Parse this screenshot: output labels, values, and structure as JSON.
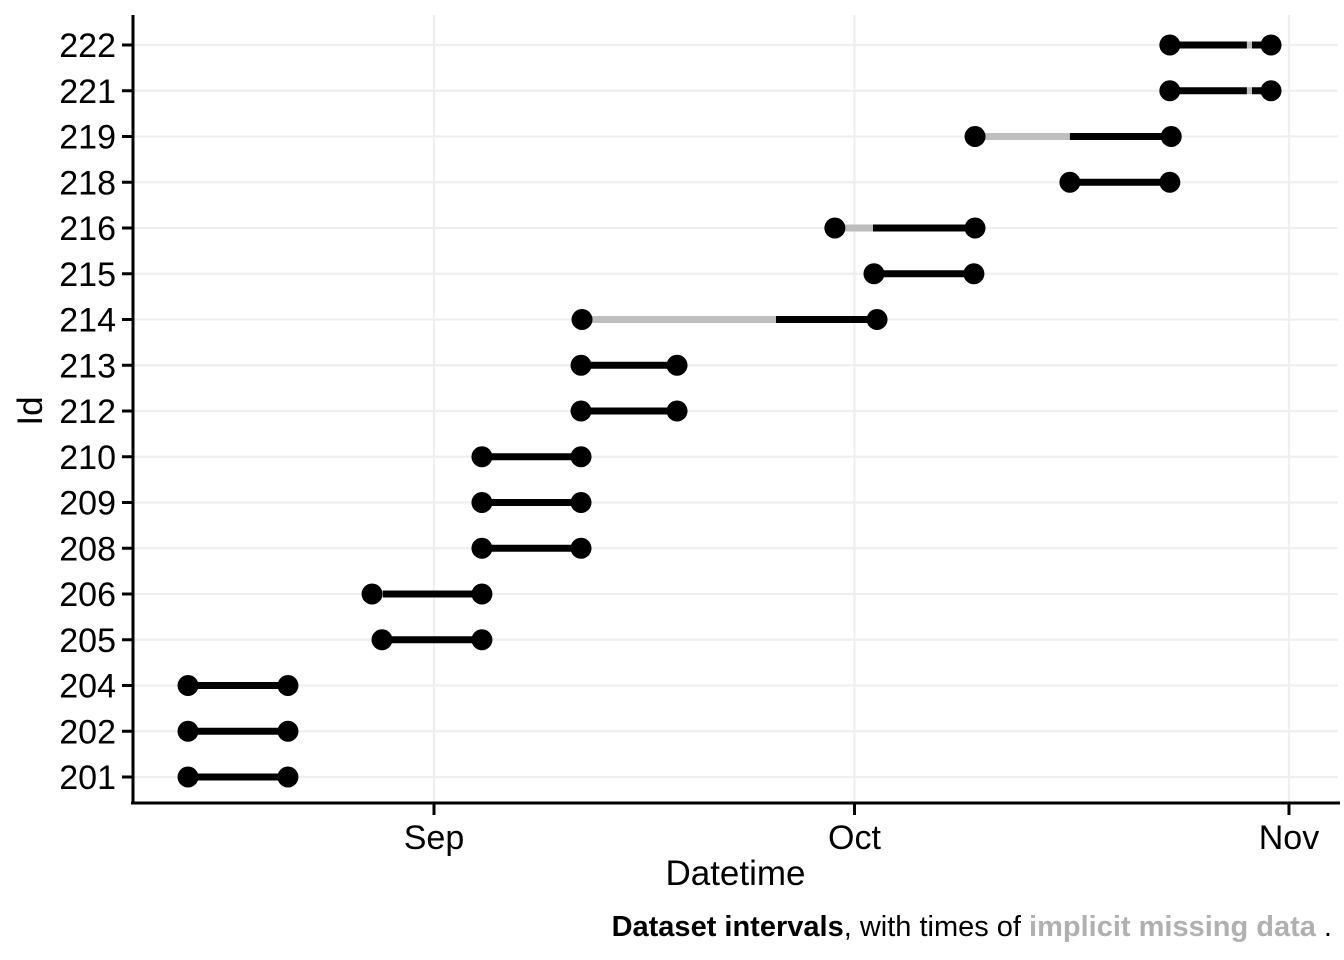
{
  "colors": {
    "ink": "#000000",
    "missing_gray": "#bebebe",
    "caption_gray": "#b0b0b0",
    "grid": "#efefef",
    "background": "#ffffff"
  },
  "chart_data": {
    "type": "interval",
    "title": "",
    "xlabel": "Datetime",
    "ylabel": "Id",
    "legend": "none",
    "grid": "on",
    "day_origin": "x positions are days, day 1 = Aug 1",
    "x_ticks": [
      {
        "label": "Sep",
        "day": 32
      },
      {
        "label": "Oct",
        "day": 62
      },
      {
        "label": "Nov",
        "day": 93
      }
    ],
    "caption": {
      "title": "Dataset intervals",
      "middle": ", with times of ",
      "missing": "implicit missing data",
      "suffix": " ."
    },
    "rows": [
      {
        "id": "222",
        "segments": [
          {
            "from": 84.5,
            "to": 90.0,
            "kind": "data"
          },
          {
            "from": 90.0,
            "to": 90.36,
            "kind": "missing"
          },
          {
            "from": 90.36,
            "to": 91.72,
            "kind": "data"
          }
        ]
      },
      {
        "id": "221",
        "segments": [
          {
            "from": 84.5,
            "to": 90.0,
            "kind": "data"
          },
          {
            "from": 90.0,
            "to": 90.36,
            "kind": "missing"
          },
          {
            "from": 90.36,
            "to": 91.72,
            "kind": "data"
          }
        ]
      },
      {
        "id": "219",
        "segments": [
          {
            "from": 70.6,
            "to": 77.37,
            "kind": "missing"
          },
          {
            "from": 77.37,
            "to": 84.6,
            "kind": "data"
          }
        ]
      },
      {
        "id": "218",
        "segments": [
          {
            "from": 77.37,
            "to": 84.5,
            "kind": "data"
          }
        ]
      },
      {
        "id": "216",
        "segments": [
          {
            "from": 60.6,
            "to": 63.32,
            "kind": "missing"
          },
          {
            "from": 63.32,
            "to": 70.6,
            "kind": "data"
          }
        ]
      },
      {
        "id": "215",
        "segments": [
          {
            "from": 63.39,
            "to": 70.52,
            "kind": "data"
          }
        ]
      },
      {
        "id": "214",
        "segments": [
          {
            "from": 42.56,
            "to": 56.4,
            "kind": "missing"
          },
          {
            "from": 56.4,
            "to": 63.61,
            "kind": "data"
          }
        ]
      },
      {
        "id": "213",
        "segments": [
          {
            "from": 42.49,
            "to": 49.34,
            "kind": "data"
          }
        ]
      },
      {
        "id": "212",
        "segments": [
          {
            "from": 42.49,
            "to": 49.34,
            "kind": "data"
          }
        ]
      },
      {
        "id": "210",
        "segments": [
          {
            "from": 35.42,
            "to": 42.49,
            "kind": "data"
          }
        ]
      },
      {
        "id": "209",
        "segments": [
          {
            "from": 35.42,
            "to": 42.49,
            "kind": "data"
          }
        ]
      },
      {
        "id": "208",
        "segments": [
          {
            "from": 35.42,
            "to": 42.49,
            "kind": "data"
          }
        ]
      },
      {
        "id": "206",
        "segments": [
          {
            "from": 27.58,
            "to": 28.36,
            "kind": "missing"
          },
          {
            "from": 28.36,
            "to": 35.42,
            "kind": "data"
          }
        ]
      },
      {
        "id": "205",
        "segments": [
          {
            "from": 28.29,
            "to": 35.42,
            "kind": "data"
          }
        ]
      },
      {
        "id": "204",
        "segments": [
          {
            "from": 14.45,
            "to": 21.58,
            "kind": "data"
          }
        ]
      },
      {
        "id": "202",
        "segments": [
          {
            "from": 14.45,
            "to": 21.58,
            "kind": "data"
          }
        ]
      },
      {
        "id": "201",
        "segments": [
          {
            "from": 14.45,
            "to": 21.58,
            "kind": "data"
          }
        ]
      }
    ]
  }
}
